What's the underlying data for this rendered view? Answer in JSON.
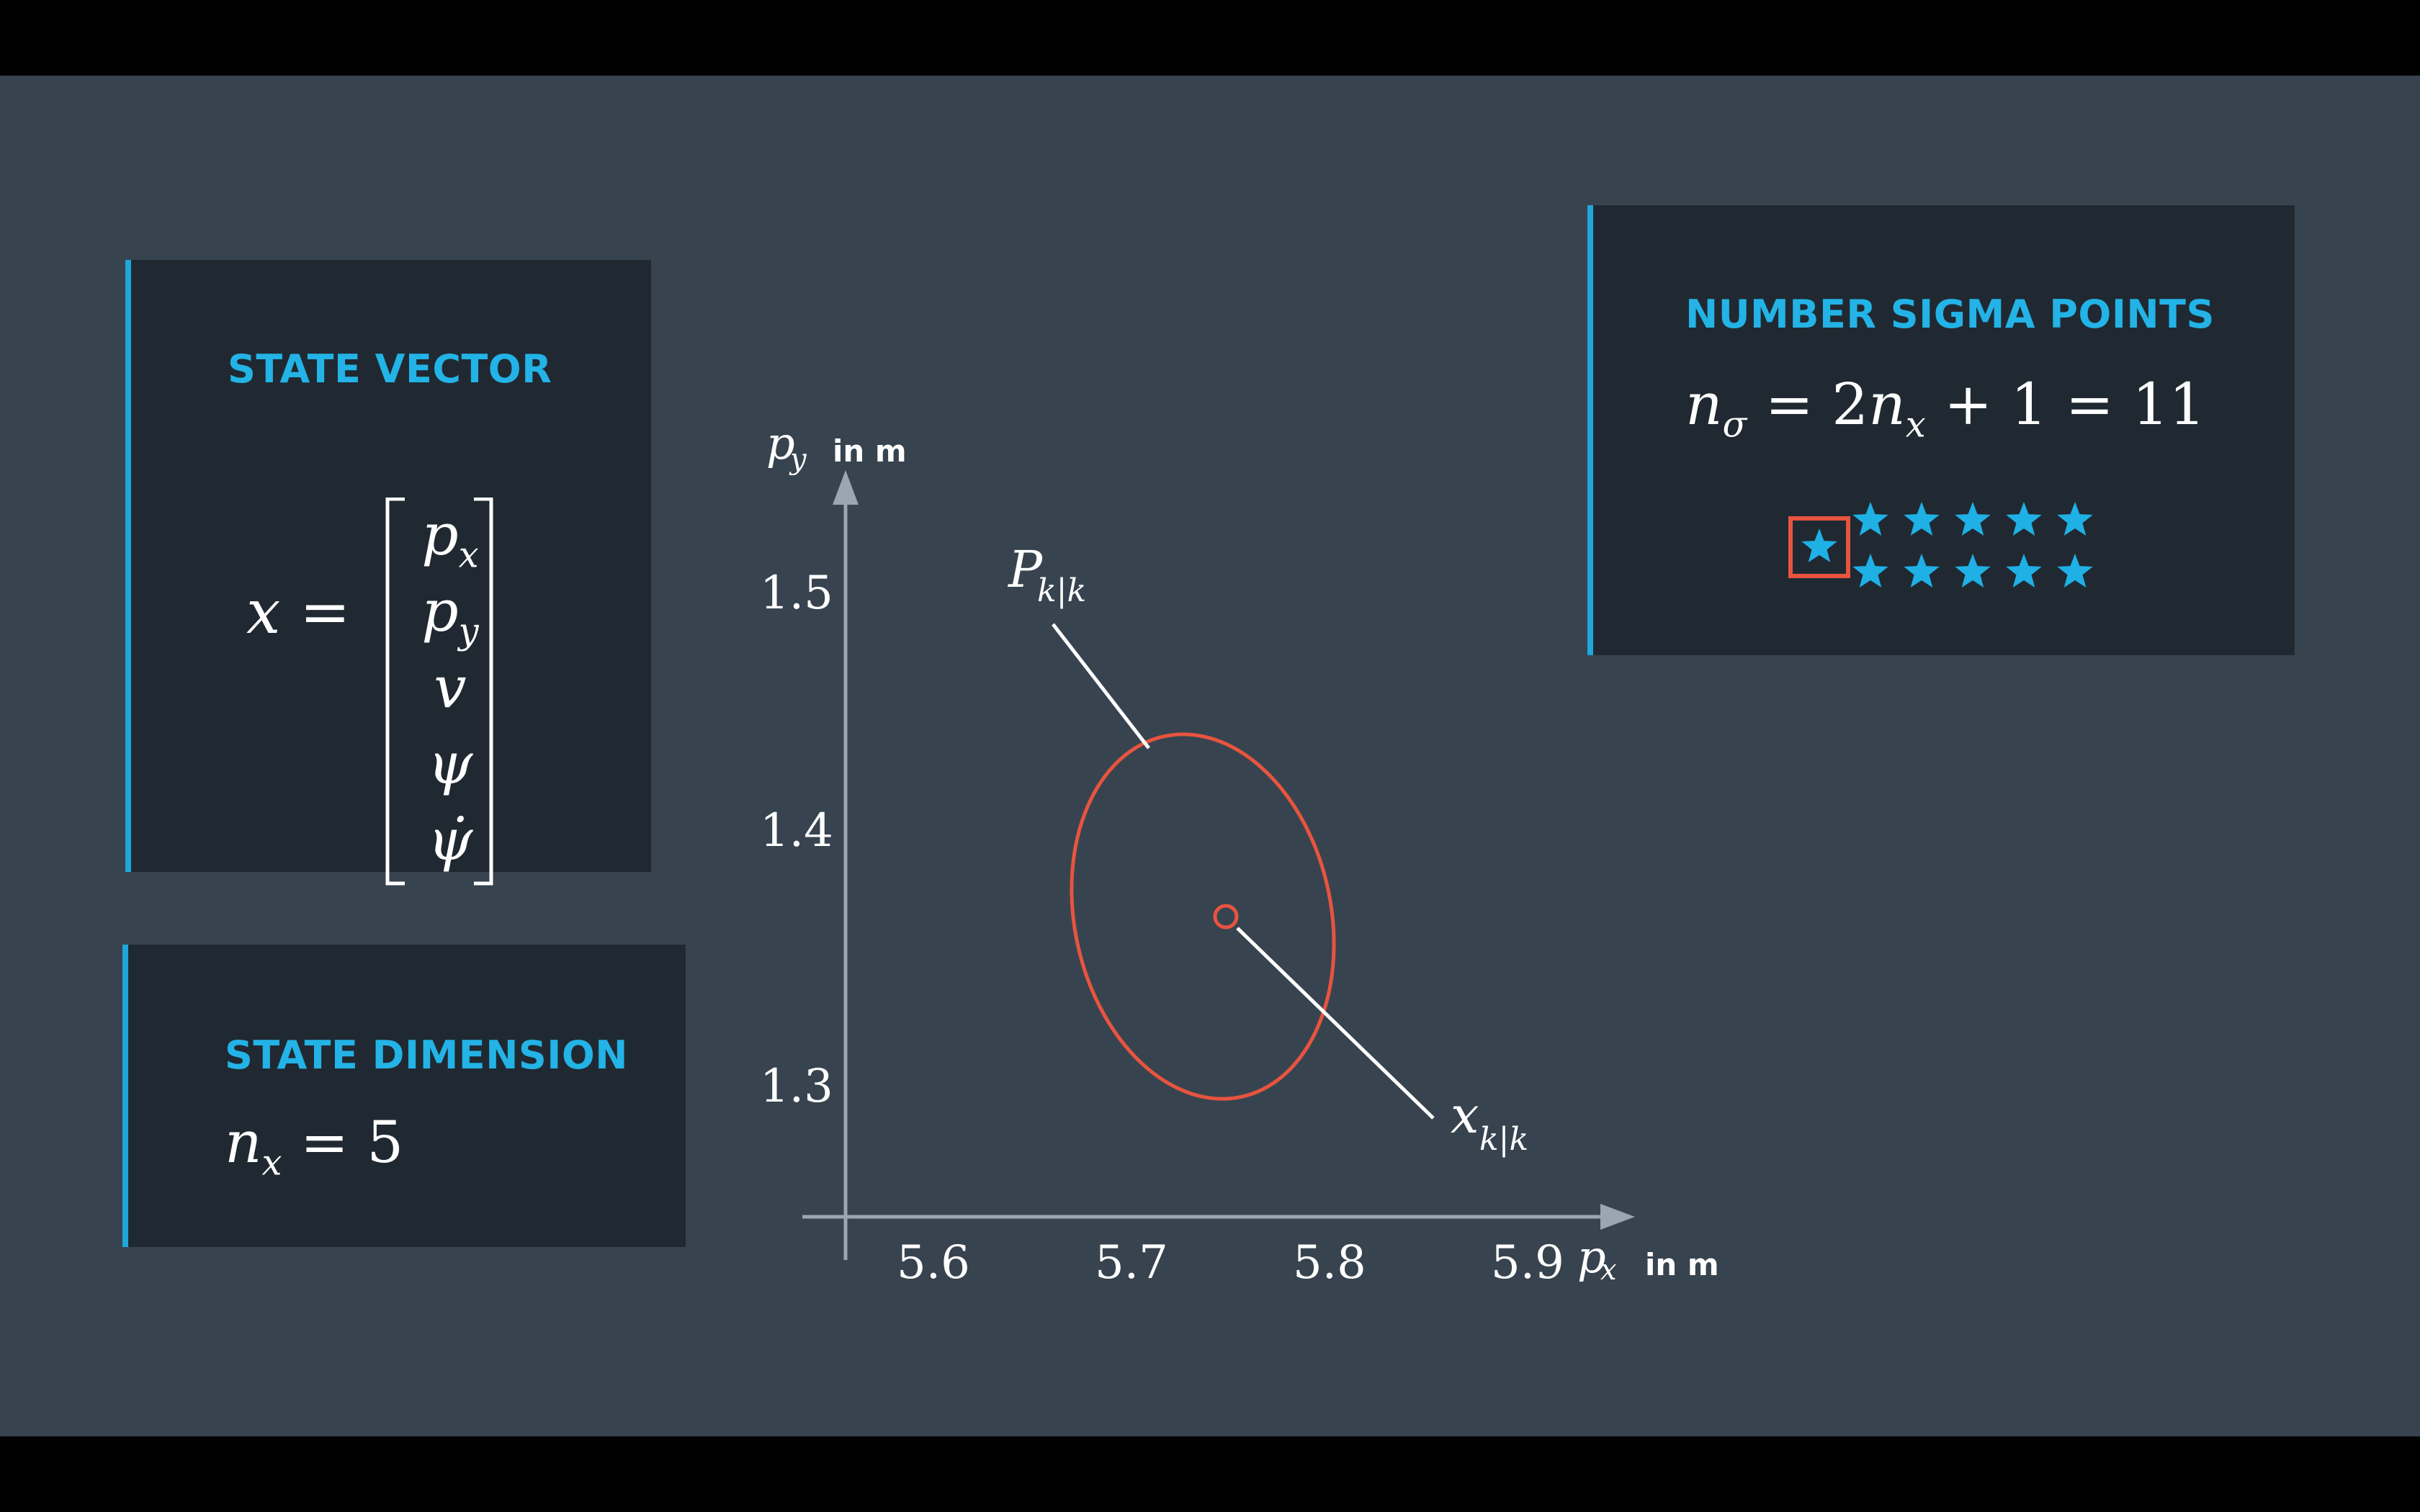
{
  "state_vector": {
    "title": "STATE VECTOR",
    "lhs": "x",
    "eq": "=",
    "rows": [
      {
        "base": "p",
        "sub": "x"
      },
      {
        "base": "p",
        "sub": "y"
      },
      {
        "base": "v",
        "sub": ""
      },
      {
        "base": "ψ",
        "sub": ""
      },
      {
        "base": "ψ̇",
        "sub": ""
      }
    ]
  },
  "state_dimension": {
    "title": "STATE DIMENSION",
    "var": "n",
    "sub": "x",
    "rhs": "= 5"
  },
  "sigma_points": {
    "title": "NUMBER SIGMA POINTS",
    "var": "n",
    "sub": "σ",
    "eq1": "= 2",
    "var2": "n",
    "sub2": "x",
    "rest": "+ 1 = 11",
    "star_count": 11,
    "highlighted_star": 1,
    "star_color": "#1fb0e6",
    "highlight_color": "#e8543f"
  },
  "plot": {
    "y_axis_var": "p",
    "y_axis_sub": "y",
    "y_axis_unit": "in m",
    "x_axis_var": "p",
    "x_axis_sub": "x",
    "x_axis_unit": "in m",
    "x_ticks": [
      "5.6",
      "5.7",
      "5.8",
      "5.9"
    ],
    "y_ticks": [
      "1.5",
      "1.4",
      "1.3"
    ],
    "covariance_label": {
      "base": "P",
      "sub": "k|k"
    },
    "mean_label": {
      "base": "x",
      "sub": "k|k"
    },
    "ellipse_color": "#e8543f",
    "axis_color": "#9aa6b2"
  }
}
